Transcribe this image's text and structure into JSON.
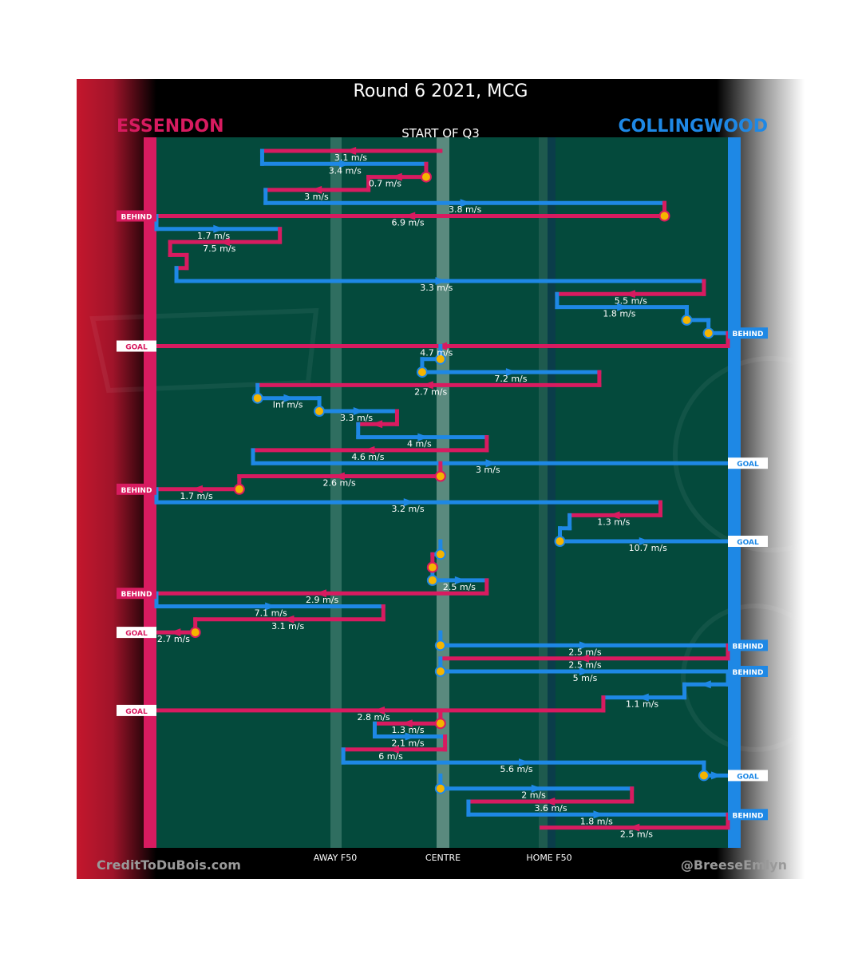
{
  "title": "Round 6 2021, MCG",
  "subtitle": "START OF Q3",
  "teams": {
    "left": {
      "name": "ESSENDON",
      "color": "#d81b60"
    },
    "right": {
      "name": "COLLINGWOOD",
      "color": "#1e88e5"
    }
  },
  "field": {
    "axis_labels": [
      "AWAY F50",
      "CENTRE",
      "HOME F50"
    ],
    "background": "#044a3c"
  },
  "credits": {
    "left": "CreditToDuBois.com",
    "right": "@BreeseEmlyn"
  },
  "chart_data": {
    "type": "table",
    "title": "Round 6 2021, MCG",
    "subtitle": "START OF Q3",
    "x_axis": {
      "min": 0,
      "max": 100,
      "ticks": [
        {
          "label": "AWAY F50",
          "value": 30
        },
        {
          "label": "CENTRE",
          "value": 50
        },
        {
          "label": "HOME F50",
          "value": 70
        }
      ]
    },
    "chains": [
      {
        "team": "ESSENDON",
        "segments": [
          {
            "from": 49.7,
            "to": 18.5,
            "speed": "3.1 m/s",
            "label_x": 34
          }
        ]
      },
      {
        "team": "COLLINGWOOD",
        "segments": [
          {
            "from": 18.5,
            "to": 47.2,
            "speed": "3.4 m/s",
            "label_x": 33
          }
        ]
      },
      {
        "team": "ESSENDON",
        "start_marker": true,
        "segments": [
          {
            "from": 47.2,
            "to": 37.1,
            "speed": "0.7 m/s",
            "label_x": 40
          }
        ]
      },
      {
        "team": "ESSENDON",
        "segments": [
          {
            "from": 37.1,
            "to": 19.1,
            "speed": "3 m/s",
            "label_x": 28
          }
        ]
      },
      {
        "team": "COLLINGWOOD",
        "segments": [
          {
            "from": 19.1,
            "to": 88.9,
            "speed": "3.8 m/s",
            "label_x": 54
          }
        ]
      },
      {
        "team": "ESSENDON",
        "start_marker": true,
        "end": "BEHIND",
        "segments": [
          {
            "from": 88.9,
            "to": 0,
            "speed": "6.9 m/s",
            "label_x": 44
          }
        ]
      },
      {
        "team": "COLLINGWOOD",
        "segments": [
          {
            "from": 0,
            "to": 21.6,
            "speed": "1.7 m/s",
            "label_x": 10
          }
        ]
      },
      {
        "team": "ESSENDON",
        "segments": [
          {
            "from": 21.6,
            "to": 2.4,
            "speed": "7.5 m/s",
            "label_x": 11
          }
        ]
      },
      {
        "team": "ESSENDON",
        "segments": [
          {
            "from": 2.4,
            "to": 5.3,
            "speed": "",
            "label_x": 4
          },
          {
            "from": 5.3,
            "to": 3.5,
            "speed": "",
            "label_x": 4
          }
        ]
      },
      {
        "team": "COLLINGWOOD",
        "segments": [
          {
            "from": 3.5,
            "to": 95.8,
            "speed": "3.3 m/s",
            "label_x": 49
          }
        ]
      },
      {
        "team": "ESSENDON",
        "segments": [
          {
            "from": 95.8,
            "to": 70.1,
            "speed": "5.5 m/s",
            "label_x": 83
          }
        ]
      },
      {
        "team": "COLLINGWOOD",
        "segments": [
          {
            "from": 70.1,
            "to": 92.8,
            "speed": "1.8 m/s",
            "label_x": 81
          }
        ]
      },
      {
        "team": "COLLINGWOOD",
        "start_marker": true,
        "segments": [
          {
            "from": 92.8,
            "to": 96.6,
            "speed": "",
            "label_x": 95
          }
        ]
      },
      {
        "team": "COLLINGWOOD",
        "start_marker": true,
        "end": "BEHIND",
        "segments": [
          {
            "from": 96.6,
            "to": 100,
            "speed": "",
            "label_x": 98
          }
        ]
      },
      {
        "team": "ESSENDON",
        "end": "GOAL",
        "segments": [
          {
            "from": 100,
            "to": 0,
            "speed": "4.7 m/s",
            "label_x": 49
          }
        ]
      },
      {
        "team": "COLLINGWOOD",
        "start_marker": true,
        "segments": [
          {
            "from": 49.7,
            "to": 46.5,
            "speed": "",
            "label_x": 48
          }
        ]
      },
      {
        "team": "COLLINGWOOD",
        "start_marker": true,
        "segments": [
          {
            "from": 46.5,
            "to": 77.5,
            "speed": "7.2 m/s",
            "label_x": 62
          }
        ]
      },
      {
        "team": "ESSENDON",
        "segments": [
          {
            "from": 77.5,
            "to": 17.7,
            "speed": "2.7 m/s",
            "label_x": 48
          }
        ]
      },
      {
        "team": "COLLINGWOOD",
        "start_marker": true,
        "segments": [
          {
            "from": 17.7,
            "to": 28.5,
            "speed": "Inf m/s",
            "label_x": 23
          }
        ]
      },
      {
        "team": "COLLINGWOOD",
        "start_marker": true,
        "segments": [
          {
            "from": 28.5,
            "to": 42.1,
            "speed": "3.3 m/s",
            "label_x": 35
          }
        ]
      },
      {
        "team": "ESSENDON",
        "segments": [
          {
            "from": 42.1,
            "to": 35.3,
            "speed": "",
            "label_x": 39
          }
        ]
      },
      {
        "team": "COLLINGWOOD",
        "segments": [
          {
            "from": 35.3,
            "to": 57.8,
            "speed": "4 m/s",
            "label_x": 46
          }
        ]
      },
      {
        "team": "ESSENDON",
        "segments": [
          {
            "from": 57.8,
            "to": 16.9,
            "speed": "4.6 m/s",
            "label_x": 37
          }
        ]
      },
      {
        "team": "COLLINGWOOD",
        "end": "GOAL",
        "segments": [
          {
            "from": 16.9,
            "to": 100,
            "speed": "3 m/s",
            "label_x": 58
          }
        ]
      },
      {
        "team": "ESSENDON",
        "start_marker": true,
        "segments": [
          {
            "from": 49.7,
            "to": 14.5,
            "speed": "2.6 m/s",
            "label_x": 32
          }
        ]
      },
      {
        "team": "ESSENDON",
        "start_marker": true,
        "end": "BEHIND",
        "segments": [
          {
            "from": 14.5,
            "to": 0,
            "speed": "1.7 m/s",
            "label_x": 7
          }
        ]
      },
      {
        "team": "COLLINGWOOD",
        "segments": [
          {
            "from": 0,
            "to": 88.2,
            "speed": "3.2 m/s",
            "label_x": 44
          }
        ]
      },
      {
        "team": "ESSENDON",
        "segments": [
          {
            "from": 88.2,
            "to": 72.3,
            "speed": "1.3 m/s",
            "label_x": 80
          }
        ]
      },
      {
        "team": "COLLINGWOOD",
        "segments": [
          {
            "from": 72.3,
            "to": 70.6,
            "speed": "",
            "label_x": 71
          }
        ]
      },
      {
        "team": "COLLINGWOOD",
        "start_marker": true,
        "end": "GOAL",
        "segments": [
          {
            "from": 70.6,
            "to": 100,
            "speed": "10.7 m/s",
            "label_x": 86
          }
        ]
      },
      {
        "team": "COLLINGWOOD",
        "start_marker": true,
        "segments": [
          {
            "from": 49.7,
            "to": 48.3,
            "speed": "",
            "label_x": 49
          }
        ]
      },
      {
        "team": "ESSENDON",
        "start_marker": true,
        "segments": [
          {
            "from": 48.3,
            "to": 48.3,
            "speed": "",
            "label_x": 48
          }
        ]
      },
      {
        "team": "COLLINGWOOD",
        "start_marker": true,
        "segments": [
          {
            "from": 48.3,
            "to": 57.8,
            "speed": "2.5 m/s",
            "label_x": 53
          }
        ]
      },
      {
        "team": "ESSENDON",
        "end": "BEHIND",
        "segments": [
          {
            "from": 57.8,
            "to": 0,
            "speed": "2.9 m/s",
            "label_x": 29
          }
        ]
      },
      {
        "team": "COLLINGWOOD",
        "segments": [
          {
            "from": 0,
            "to": 39.7,
            "speed": "7.1 m/s",
            "label_x": 20
          }
        ]
      },
      {
        "team": "ESSENDON",
        "segments": [
          {
            "from": 39.7,
            "to": 6.8,
            "speed": "3.1 m/s",
            "label_x": 23
          }
        ]
      },
      {
        "team": "ESSENDON",
        "start_marker": true,
        "end": "GOAL",
        "segments": [
          {
            "from": 6.8,
            "to": 0,
            "speed": "2.7 m/s",
            "label_x": 3
          }
        ]
      },
      {
        "team": "COLLINGWOOD",
        "start_marker": true,
        "end": "BEHIND",
        "segments": [
          {
            "from": 49.7,
            "to": 100,
            "speed": "2.5 m/s",
            "label_x": 75
          }
        ]
      },
      {
        "team": "ESSENDON",
        "segments": [
          {
            "from": 100,
            "to": 49.7,
            "speed": "2.5 m/s",
            "label_x": 75
          }
        ]
      },
      {
        "team": "COLLINGWOOD",
        "start_marker": true,
        "end": "BEHIND",
        "segments": [
          {
            "from": 49.7,
            "to": 100,
            "speed": "5 m/s",
            "label_x": 75
          }
        ]
      },
      {
        "team": "COLLINGWOOD",
        "segments": [
          {
            "from": 100,
            "to": 92.4,
            "speed": "",
            "label_x": 96
          },
          {
            "from": 92.4,
            "to": 78.2,
            "speed": "1.1 m/s",
            "label_x": 85
          }
        ]
      },
      {
        "team": "ESSENDON",
        "end": "GOAL",
        "segments": [
          {
            "from": 78.2,
            "to": 0,
            "speed": "2.8 m/s",
            "label_x": 38
          }
        ]
      },
      {
        "team": "ESSENDON",
        "start_marker": true,
        "segments": [
          {
            "from": 49.7,
            "to": 38.2,
            "speed": "1.3 m/s",
            "label_x": 44
          }
        ]
      },
      {
        "team": "COLLINGWOOD",
        "segments": [
          {
            "from": 38.2,
            "to": 50.5,
            "speed": "2.1 m/s",
            "label_x": 44
          }
        ]
      },
      {
        "team": "ESSENDON",
        "segments": [
          {
            "from": 50.5,
            "to": 32.7,
            "speed": "6 m/s",
            "label_x": 41
          }
        ]
      },
      {
        "team": "COLLINGWOOD",
        "segments": [
          {
            "from": 32.7,
            "to": 95.8,
            "speed": "5.6 m/s",
            "label_x": 63
          }
        ]
      },
      {
        "team": "COLLINGWOOD",
        "start_marker": true,
        "end": "GOAL",
        "segments": [
          {
            "from": 95.8,
            "to": 100,
            "speed": "",
            "label_x": 98
          }
        ]
      },
      {
        "team": "COLLINGWOOD",
        "start_marker": true,
        "segments": [
          {
            "from": 49.7,
            "to": 83.2,
            "speed": "2 m/s",
            "label_x": 66
          }
        ]
      },
      {
        "team": "ESSENDON",
        "segments": [
          {
            "from": 83.2,
            "to": 54.6,
            "speed": "3.6 m/s",
            "label_x": 69
          }
        ]
      },
      {
        "team": "COLLINGWOOD",
        "end": "BEHIND",
        "segments": [
          {
            "from": 54.6,
            "to": 100,
            "speed": "1.8 m/s",
            "label_x": 77
          }
        ]
      },
      {
        "team": "ESSENDON",
        "segments": [
          {
            "from": 100,
            "to": 67.4,
            "speed": "2.5 m/s",
            "label_x": 84
          }
        ]
      }
    ]
  }
}
